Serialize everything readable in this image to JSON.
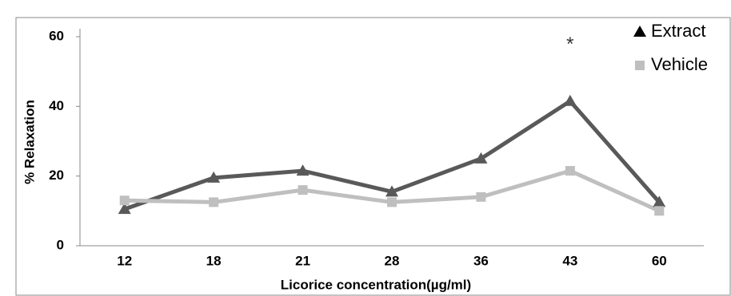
{
  "chart_data": {
    "type": "line",
    "x_label": "Licorice concentration(µg/ml)",
    "y_label": "% Relaxation",
    "categories": [
      "12",
      "18",
      "21",
      "28",
      "36",
      "43",
      "60"
    ],
    "series": [
      {
        "name": "Extract",
        "color": "#595959",
        "marker": "triangle",
        "values": [
          10.5,
          19.5,
          21.5,
          15.5,
          25,
          41.5,
          12.5
        ]
      },
      {
        "name": "Vehicle",
        "color": "#bfbfbf",
        "marker": "square",
        "values": [
          13,
          12.5,
          16,
          12.5,
          14,
          21.5,
          10
        ]
      }
    ],
    "ylim": [
      0,
      60
    ],
    "yticks": [
      0,
      20,
      40,
      60
    ],
    "annotations": [
      "*"
    ],
    "legend": "top-right"
  }
}
